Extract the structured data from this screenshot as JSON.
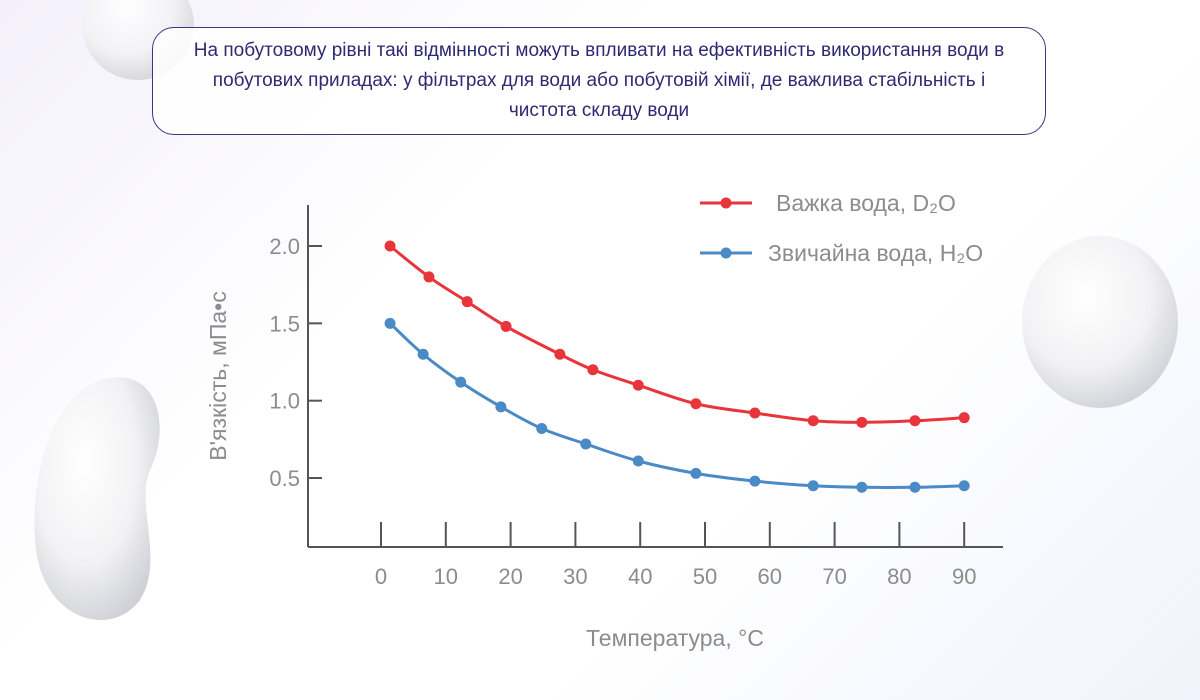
{
  "note": "На побутовому рівні такі відмінності можуть впливати на ефективність використання води в побутових приладах: у фільтрах для води або побутовій хімії, де важлива стабільність і чистота складу води",
  "chart_data": {
    "type": "line",
    "xlabel": "Температура, °C",
    "ylabel": "В'язкість, мПа•с",
    "xlim": [
      0,
      90
    ],
    "ylim": [
      0.5,
      2.0
    ],
    "x_ticks": [
      "0",
      "10",
      "20",
      "30",
      "40",
      "50",
      "60",
      "70",
      "80",
      "90"
    ],
    "y_ticks": [
      "2.0",
      "1.5",
      "1.0",
      "0.5"
    ],
    "grid": false,
    "legend_position": "top-right",
    "series": [
      {
        "name": "Важка вода, D₂O",
        "color": "#e8353b",
        "x": [
          1.4,
          7.4,
          13.3,
          19.3,
          27.6,
          32.7,
          39.7,
          48.6,
          57.7,
          66.7,
          74.2,
          82.4,
          90
        ],
        "values": [
          2.0,
          1.8,
          1.64,
          1.48,
          1.3,
          1.2,
          1.1,
          0.98,
          0.92,
          0.87,
          0.86,
          0.87,
          0.89
        ]
      },
      {
        "name": "Звичайна вода, H₂O",
        "color": "#4a8ac6",
        "x": [
          1.4,
          6.5,
          12.3,
          18.5,
          24.8,
          31.6,
          39.7,
          48.6,
          57.7,
          66.7,
          74.2,
          82.4,
          90
        ],
        "values": [
          1.5,
          1.3,
          1.12,
          0.96,
          0.82,
          0.72,
          0.61,
          0.53,
          0.48,
          0.45,
          0.44,
          0.44,
          0.45
        ]
      }
    ]
  }
}
